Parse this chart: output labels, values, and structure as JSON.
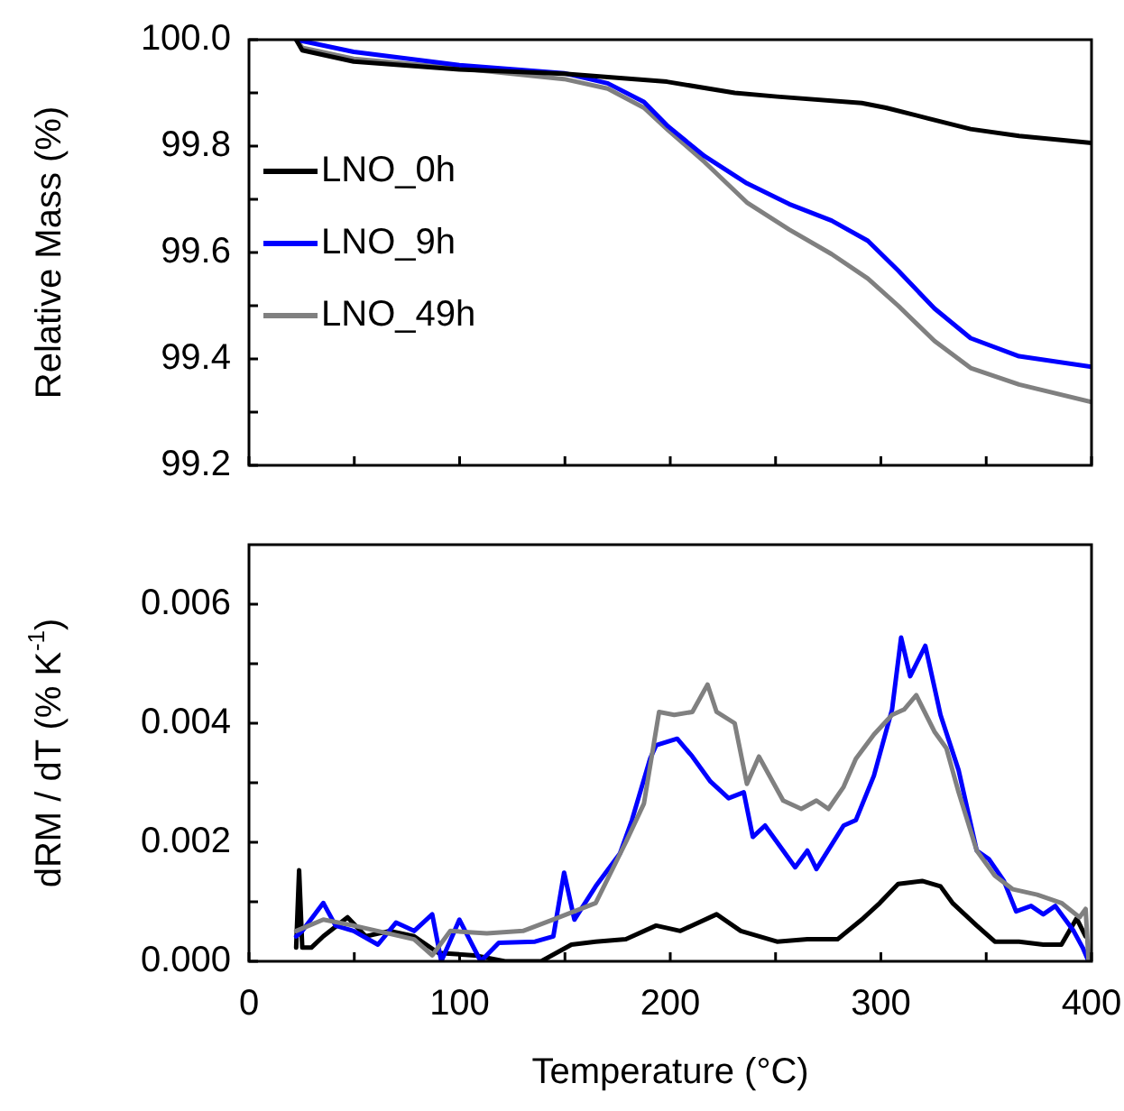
{
  "chart_data": [
    {
      "type": "line",
      "ylabel": "Relative Mass (%)",
      "xlim": [
        0,
        400
      ],
      "xticks": [
        {
          "value": 0,
          "label": null
        },
        {
          "value": 50,
          "label": null
        },
        {
          "value": 100,
          "label": null
        },
        {
          "value": 150,
          "label": null
        },
        {
          "value": 200,
          "label": null
        },
        {
          "value": 250,
          "label": null
        },
        {
          "value": 300,
          "label": null
        },
        {
          "value": 350,
          "label": null
        },
        {
          "value": 400,
          "label": null
        }
      ],
      "ylim": [
        99.2,
        100
      ],
      "yticks": [
        99.2,
        {
          "value": 99.3,
          "label": null
        },
        99.4,
        {
          "value": 99.5,
          "label": null
        },
        99.6,
        {
          "value": 99.7,
          "label": null
        },
        99.8,
        {
          "value": 99.9,
          "label": null
        },
        {
          "value": 100,
          "label": "100.0"
        }
      ],
      "tick_labels": "y",
      "legend": "left",
      "grid": false,
      "series": [
        {
          "name": "LNO_0h",
          "color": "#000000",
          "x": [
            22.4,
            25.3,
            49.7,
            99.9,
            149.6,
            198.4,
            230.6,
            250.7,
            290.9,
            302.4,
            322.5,
            342.6,
            365.6,
            400
          ],
          "values": [
            100.0,
            99.98,
            99.959,
            99.944,
            99.936,
            99.921,
            99.9,
            99.893,
            99.881,
            99.872,
            99.852,
            99.832,
            99.819,
            99.806
          ]
        },
        {
          "name": "LNO_9h",
          "color": "#0000ff",
          "x": [
            22.4,
            49.7,
            99.9,
            149.6,
            170.3,
            187.5,
            199.0,
            216.3,
            236.4,
            256.5,
            276.6,
            293.8,
            308.2,
            325.4,
            342.6,
            365.6,
            400
          ],
          "values": [
            100.0,
            99.977,
            99.952,
            99.937,
            99.918,
            99.883,
            99.837,
            99.781,
            99.73,
            99.691,
            99.66,
            99.622,
            99.566,
            99.495,
            99.439,
            99.405,
            99.385
          ]
        },
        {
          "name": "LNO_49h",
          "color": "#808080",
          "x": [
            22.4,
            25.3,
            49.7,
            99.9,
            149.6,
            170.3,
            187.5,
            199.0,
            216.3,
            236.4,
            256.5,
            276.6,
            293.8,
            308.2,
            325.4,
            342.6,
            365.6,
            400
          ],
          "values": [
            100.0,
            99.985,
            99.964,
            99.946,
            99.926,
            99.908,
            99.872,
            99.83,
            99.77,
            99.694,
            99.643,
            99.597,
            99.551,
            99.5,
            99.434,
            99.383,
            99.352,
            99.319
          ]
        }
      ]
    },
    {
      "type": "line",
      "xlabel": "Temperature (°C)",
      "ylabel": "dRM / dT (% K$^{-1}$)",
      "xlim": [
        0,
        400
      ],
      "xticks": [
        0,
        {
          "value": 50,
          "label": null
        },
        100,
        {
          "value": 150,
          "label": null
        },
        200,
        {
          "value": 250,
          "label": null
        },
        300,
        {
          "value": 350,
          "label": null
        },
        400
      ],
      "ylim": [
        0,
        0.007
      ],
      "yticks": [
        {
          "value": 0,
          "label": "0.000"
        },
        {
          "value": 0.001,
          "label": null
        },
        {
          "value": 0.002,
          "label": "0.002"
        },
        {
          "value": 0.003,
          "label": null
        },
        {
          "value": 0.004,
          "label": "0.004"
        },
        {
          "value": 0.005,
          "label": null
        },
        {
          "value": 0.006,
          "label": "0.006"
        }
      ],
      "grid": false,
      "series": [
        {
          "color": "#808080",
          "x": [
            22.4,
            35.3,
            49.7,
            78.4,
            87.0,
            95.6,
            112.9,
            130.1,
            147.3,
            164.6,
            178.9,
            187.5,
            194.7,
            201.9,
            210.5,
            217.7,
            222.0,
            230.6,
            236.4,
            242.1,
            253.6,
            262.2,
            269.4,
            275.1,
            282.3,
            288.1,
            296.7,
            305.3,
            311.0,
            316.8,
            325.4,
            331.1,
            336.9,
            345.5,
            354.1,
            362.7,
            374.2,
            385.7,
            394.3,
            397.2,
            398.6
          ],
          "values": [
            0.00051,
            0.0007,
            0.0006,
            0.00037,
            0.0001,
            0.00051,
            0.00047,
            0.00051,
            0.00074,
            0.00098,
            0.002,
            0.00265,
            0.00419,
            0.00414,
            0.00419,
            0.00465,
            0.00419,
            0.004,
            0.00298,
            0.00344,
            0.0027,
            0.00256,
            0.0027,
            0.00256,
            0.00293,
            0.0034,
            0.00381,
            0.00414,
            0.00423,
            0.00447,
            0.00386,
            0.00358,
            0.00284,
            0.00186,
            0.00144,
            0.00121,
            0.00112,
            0.00098,
            0.00074,
            0.00088,
            0
          ]
        },
        {
          "color": "#0000ff",
          "x": [
            22.4,
            25.3,
            35.3,
            41.1,
            49.7,
            61.2,
            69.8,
            78.4,
            87.0,
            91.3,
            99.9,
            110.0,
            118.6,
            135.8,
            144.5,
            149.6,
            154.5,
            164.6,
            176.1,
            181.8,
            190.4,
            193.3,
            203.3,
            210.5,
            219.1,
            227.7,
            234.9,
            239.2,
            245.0,
            253.6,
            259.3,
            265.1,
            269.4,
            282.3,
            288.1,
            296.7,
            305.3,
            309.6,
            313.9,
            321.1,
            328.3,
            336.9,
            345.5,
            351.2,
            358.4,
            364.2,
            371.3,
            377.1,
            382.8,
            391.5,
            395.8,
            398.6
          ],
          "values": [
            0.00042,
            0.00051,
            0.00098,
            0.0006,
            0.00051,
            0.00028,
            0.00065,
            0.00051,
            0.00079,
            0,
            0.0007,
            0,
            0.00031,
            0.00033,
            0.00042,
            0.00149,
            0.0007,
            0.00126,
            0.00181,
            0.00237,
            0.0034,
            0.00363,
            0.00374,
            0.00344,
            0.00302,
            0.00274,
            0.00284,
            0.00209,
            0.00228,
            0.00186,
            0.00158,
            0.00186,
            0.00155,
            0.00228,
            0.00237,
            0.00312,
            0.00423,
            0.00544,
            0.00479,
            0.0053,
            0.00414,
            0.00321,
            0.00186,
            0.00172,
            0.00135,
            0.00084,
            0.00093,
            0.00079,
            0.00093,
            0.00051,
            0.00023,
            0
          ]
        },
        {
          "color": "#000000",
          "x": [
            22.4,
            23.8,
            25.3,
            29.6,
            35.3,
            46.8,
            55.4,
            66.9,
            78.4,
            89.9,
            107.1,
            121.5,
            138.7,
            153.1,
            164.6,
            178.9,
            193.3,
            204.8,
            222.0,
            233.5,
            250.7,
            265.1,
            279.4,
            290.9,
            299.5,
            308.2,
            319.6,
            328.3,
            334.0,
            345.5,
            354.1,
            365.6,
            377.1,
            385.7,
            392.9,
            397.2
          ],
          "values": [
            0.00023,
            0.00153,
            0.00023,
            0.00023,
            0.00042,
            0.00074,
            0.00042,
            0.00051,
            0.00042,
            0.00014,
            0.0001,
            0,
            0,
            0.00028,
            0.00033,
            0.00037,
            0.0006,
            0.00051,
            0.00079,
            0.00051,
            0.00033,
            0.00037,
            0.00037,
            0.0007,
            0.00098,
            0.0013,
            0.00135,
            0.00126,
            0.00098,
            0.0006,
            0.00033,
            0.00033,
            0.00028,
            0.00028,
            0.00072,
            0.00042
          ]
        }
      ]
    }
  ]
}
